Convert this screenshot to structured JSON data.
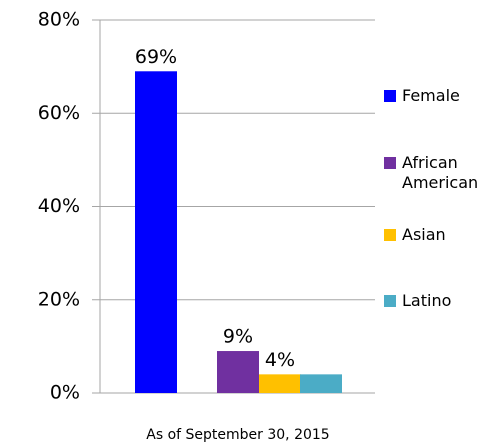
{
  "chart_data": {
    "type": "bar",
    "categories": [
      "As of September 30, 2015"
    ],
    "series": [
      {
        "name": "Female",
        "color": "#0000ff",
        "values": [
          69
        ],
        "value_labels": [
          "69%"
        ]
      },
      {
        "name": "African American",
        "color": "#7030a0",
        "values": [
          9
        ],
        "value_labels": [
          "9%"
        ]
      },
      {
        "name": "Asian",
        "color": "#ffc000",
        "values": [
          4
        ],
        "value_labels": [
          "4%"
        ]
      },
      {
        "name": "Latino",
        "color": "#4bacc6",
        "values": [
          4
        ]
      }
    ],
    "ylim": [
      0,
      80
    ],
    "yticks": [
      {
        "value": 0,
        "label": "0%"
      },
      {
        "value": 20,
        "label": "20%"
      },
      {
        "value": 40,
        "label": "40%"
      },
      {
        "value": 60,
        "label": "60%"
      },
      {
        "value": 80,
        "label": "80%"
      }
    ],
    "grid": true
  }
}
